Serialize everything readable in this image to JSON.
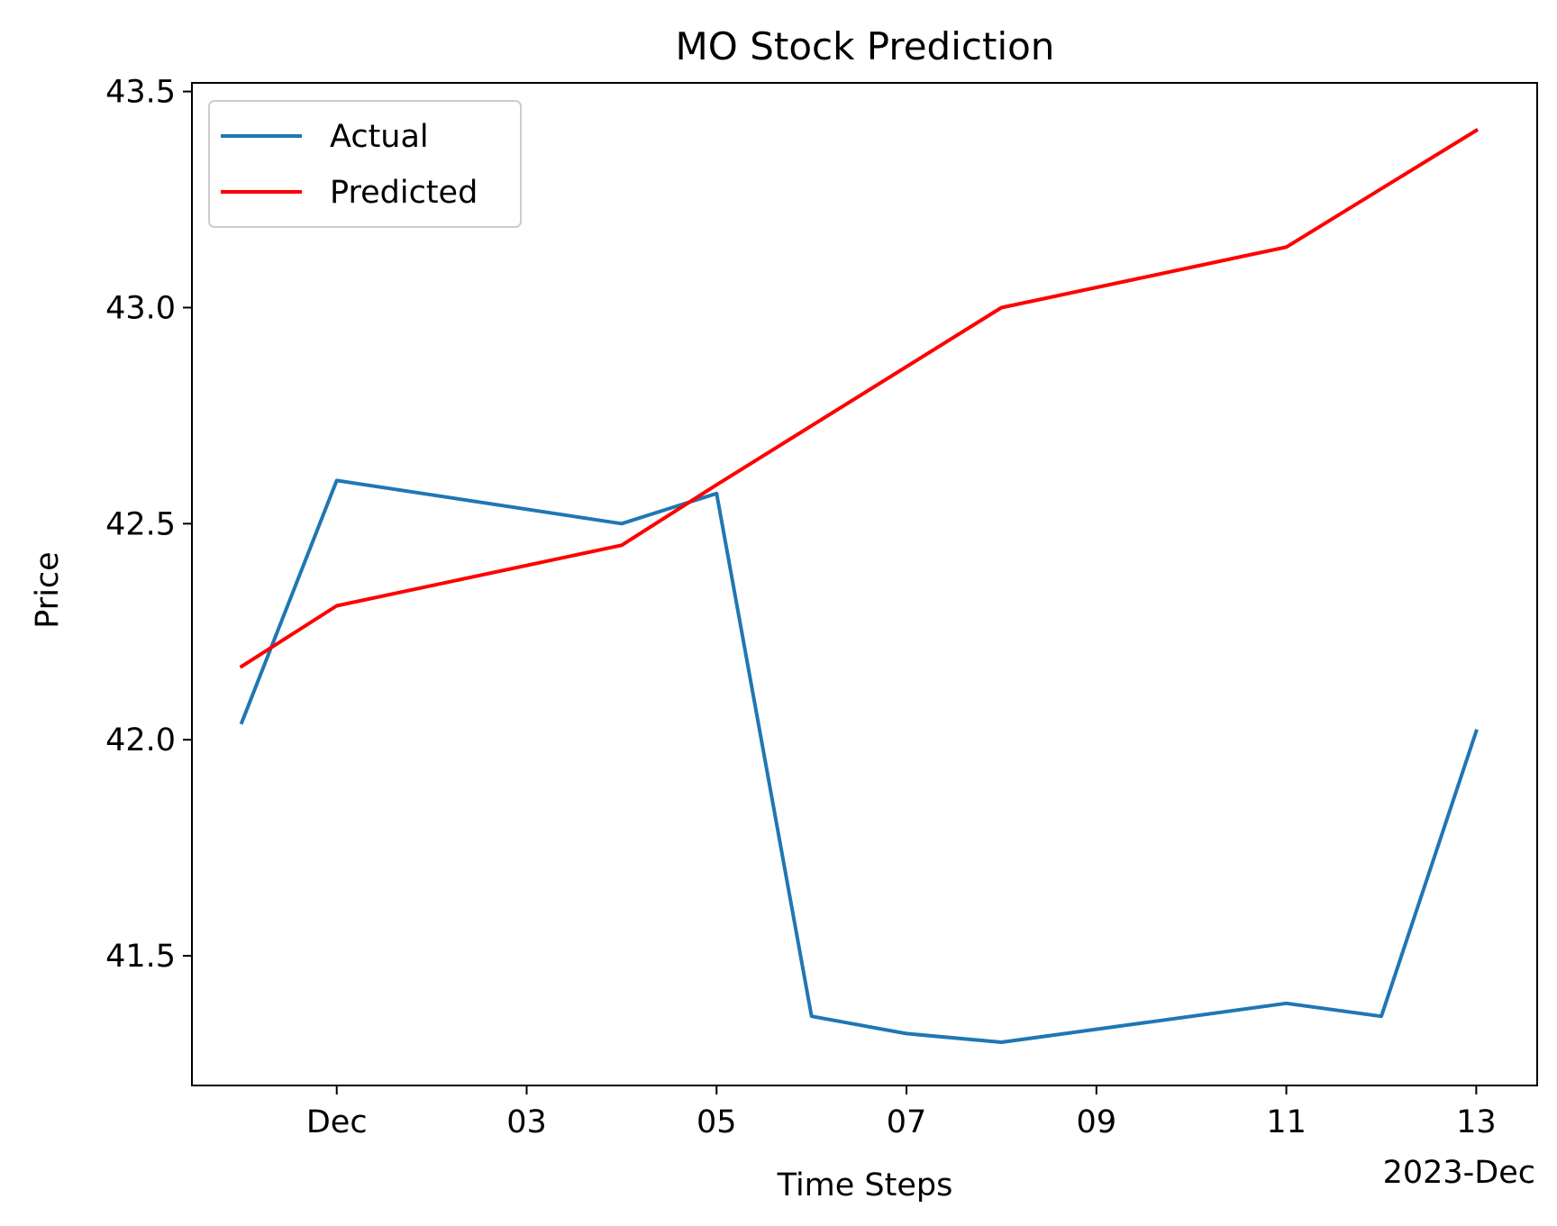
{
  "chart_data": {
    "type": "line",
    "title": "MO Stock Prediction",
    "xlabel": "Time Steps",
    "ylabel": "Price",
    "x_offset_label": "2023-Dec",
    "x_ticks": [
      {
        "date": "2023-12-01",
        "label": "Dec"
      },
      {
        "date": "2023-12-03",
        "label": "03"
      },
      {
        "date": "2023-12-05",
        "label": "05"
      },
      {
        "date": "2023-12-07",
        "label": "07"
      },
      {
        "date": "2023-12-09",
        "label": "09"
      },
      {
        "date": "2023-12-11",
        "label": "11"
      },
      {
        "date": "2023-12-13",
        "label": "13"
      }
    ],
    "y_ticks": [
      41.5,
      42.0,
      42.5,
      43.0,
      43.5
    ],
    "y_tick_labels": [
      "41.5",
      "42.0",
      "42.5",
      "43.0",
      "43.5"
    ],
    "xlim": [
      "2023-11-29T11:24",
      "2023-12-13T15:24"
    ],
    "ylim": [
      41.2,
      43.52
    ],
    "grid": false,
    "legend_position": "upper-left",
    "series": [
      {
        "name": "Actual",
        "color": "#1f77b4",
        "x": [
          "2023-11-30",
          "2023-12-01",
          "2023-12-04",
          "2023-12-05",
          "2023-12-06",
          "2023-12-07",
          "2023-12-08",
          "2023-12-11",
          "2023-12-12",
          "2023-12-13"
        ],
        "y": [
          42.04,
          42.6,
          42.5,
          42.57,
          41.36,
          41.32,
          41.3,
          41.39,
          41.36,
          42.02
        ]
      },
      {
        "name": "Predicted",
        "color": "#ff0000",
        "x": [
          "2023-11-30",
          "2023-12-01",
          "2023-12-04",
          "2023-12-05",
          "2023-12-08",
          "2023-12-11",
          "2023-12-13"
        ],
        "y": [
          42.17,
          42.31,
          42.45,
          42.59,
          43.0,
          43.14,
          43.41
        ]
      }
    ]
  }
}
